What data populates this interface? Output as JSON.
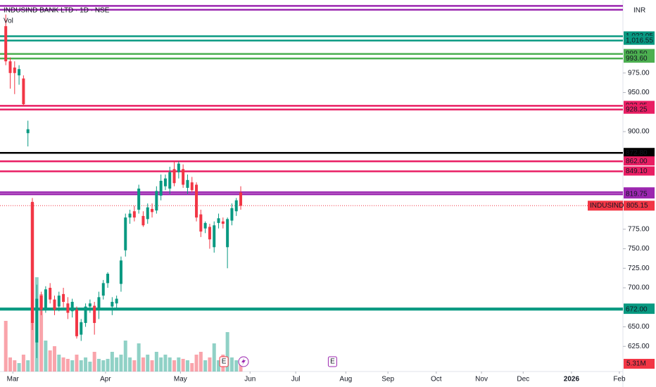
{
  "chart_data": {
    "type": "candlestick",
    "title": "INDUSIND BANK LTD · 1D · NSE",
    "volume_title": "Vol",
    "currency": "INR",
    "up_color": "#089981",
    "down_color": "#f23645",
    "xlim": [
      -1.3,
      139.2
    ],
    "xticks": [
      {
        "value": 1.6,
        "label": "Mar"
      },
      {
        "value": 22.5,
        "label": "Apr"
      },
      {
        "value": 39.4,
        "label": "May"
      },
      {
        "value": 55.1,
        "label": "Jun"
      },
      {
        "value": 65.4,
        "label": "Jul"
      },
      {
        "value": 76.7,
        "label": "Aug"
      },
      {
        "value": 86.2,
        "label": "Sep"
      },
      {
        "value": 97.1,
        "label": "Oct"
      },
      {
        "value": 107.3,
        "label": "Nov"
      },
      {
        "value": 116.7,
        "label": "Dec"
      },
      {
        "value": 127.6,
        "label": "2026"
      },
      {
        "value": 138.4,
        "label": "Feb"
      }
    ],
    "ylim": [
      592.8,
      1068.5
    ],
    "yticks": [
      {
        "value": 625,
        "label": "625.00"
      },
      {
        "value": 650,
        "label": "650.00"
      },
      {
        "value": 700,
        "label": "700.00"
      },
      {
        "value": 725,
        "label": "725.00"
      },
      {
        "value": 750,
        "label": "750.00"
      },
      {
        "value": 775,
        "label": "775.00"
      },
      {
        "value": 900,
        "label": "900.00"
      },
      {
        "value": 950,
        "label": "950.00"
      },
      {
        "value": 975,
        "label": "975.00"
      }
    ],
    "candles": {
      "open": [
        1035,
        990,
        982,
        972,
        968,
        898,
        810,
        630,
        690,
        674,
        700,
        685,
        676,
        692,
        680,
        670,
        672,
        640,
        655,
        676,
        677,
        672,
        690,
        706,
        676,
        680,
        705,
        748,
        790,
        798,
        800,
        792,
        788,
        801,
        799,
        818,
        830,
        827,
        852,
        848,
        852,
        828,
        835,
        832,
        794,
        776,
        778,
        752,
        783,
        785,
        752,
        786,
        798,
        822
      ],
      "high": [
        1050,
        995,
        990,
        985,
        972,
        914,
        815,
        704,
        695,
        702,
        706,
        690,
        695,
        700,
        688,
        686,
        676,
        660,
        680,
        685,
        682,
        695,
        710,
        720,
        688,
        690,
        740,
        795,
        800,
        805,
        832,
        798,
        808,
        808,
        830,
        845,
        845,
        855,
        862,
        862,
        858,
        845,
        842,
        835,
        800,
        785,
        782,
        785,
        795,
        790,
        790,
        808,
        815,
        830
      ],
      "low": [
        985,
        955,
        948,
        960,
        932,
        881,
        646,
        610,
        665,
        668,
        680,
        665,
        670,
        675,
        660,
        662,
        635,
        632,
        650,
        668,
        640,
        660,
        685,
        700,
        665,
        672,
        695,
        740,
        782,
        785,
        795,
        778,
        782,
        790,
        795,
        812,
        825,
        820,
        830,
        840,
        828,
        820,
        822,
        785,
        765,
        770,
        750,
        745,
        776,
        776,
        725,
        780,
        792,
        800
      ],
      "close": [
        990,
        975,
        975,
        980,
        935,
        903,
        655,
        686,
        672,
        698,
        685,
        672,
        690,
        682,
        668,
        682,
        638,
        656,
        676,
        680,
        655,
        688,
        706,
        718,
        682,
        686,
        735,
        790,
        795,
        790,
        827,
        780,
        803,
        797,
        824,
        837,
        840,
        848,
        834,
        859,
        832,
        838,
        825,
        790,
        772,
        783,
        762,
        780,
        789,
        782,
        788,
        802,
        812,
        805
      ]
    },
    "volume": {
      "vlim": [
        0,
        130
      ],
      "values": [
        36,
        10,
        8,
        6,
        12,
        8,
        120,
        67,
        55,
        22,
        15,
        18,
        12,
        10,
        9,
        8,
        12,
        8,
        10,
        7,
        14,
        9,
        8,
        9,
        14,
        10,
        12,
        22,
        10,
        8,
        20,
        10,
        12,
        8,
        14,
        10,
        12,
        10,
        8,
        10,
        9,
        8,
        6,
        12,
        14,
        8,
        10,
        20,
        8,
        12,
        28,
        10,
        8,
        5.31
      ],
      "value_labels": [
        null,
        null,
        null,
        null,
        null,
        null,
        null,
        null,
        null,
        null,
        null,
        null,
        null,
        null,
        null,
        null,
        null,
        null,
        null,
        null,
        null,
        null,
        null,
        null,
        null,
        null,
        null,
        null,
        null,
        null,
        null,
        null,
        null,
        null,
        null,
        null,
        null,
        null,
        null,
        null,
        null,
        null,
        null,
        null,
        null,
        null,
        null,
        null,
        null,
        null,
        null,
        null,
        null,
        "5.31M"
      ]
    },
    "levels": [
      {
        "value": 1061,
        "color": "#9c27b0"
      },
      {
        "value": 1056,
        "color": "#9c27b0"
      },
      {
        "value": 1022.05,
        "label": "1,022.05",
        "color": "#089981"
      },
      {
        "value": 1016.55,
        "label": "1,016.55",
        "color": "#089981"
      },
      {
        "value": 999.5,
        "label": "999.50",
        "color": "#4caf50"
      },
      {
        "value": 993.6,
        "label": "993.60",
        "color": "#4caf50"
      },
      {
        "value": 933.05,
        "label": "933.05",
        "color": "#e91e63"
      },
      {
        "value": 928.25,
        "label": "928.25",
        "color": "#e91e63"
      },
      {
        "value": 872.8,
        "label": "872.80",
        "color": "#000000"
      },
      {
        "value": 862,
        "label": "862.00",
        "color": "#e91e63"
      },
      {
        "value": 849.1,
        "label": "849.10",
        "color": "#e91e63"
      },
      {
        "value": 822.35,
        "label": "822.35",
        "color": "#9c27b0"
      },
      {
        "value": 819.75,
        "label": "819.75",
        "color": "#9c27b0"
      },
      {
        "value": 673.55,
        "label": "673.55",
        "color": "#089981"
      },
      {
        "value": 672,
        "label": "672.00",
        "color": "#089981"
      }
    ],
    "last_price": {
      "name": "INDUSINDBK",
      "value": 805.15,
      "color": "#f23645"
    },
    "events": [
      {
        "label": "E",
        "x": 49.2
      },
      {
        "label": "E",
        "x": 73.7
      }
    ]
  }
}
